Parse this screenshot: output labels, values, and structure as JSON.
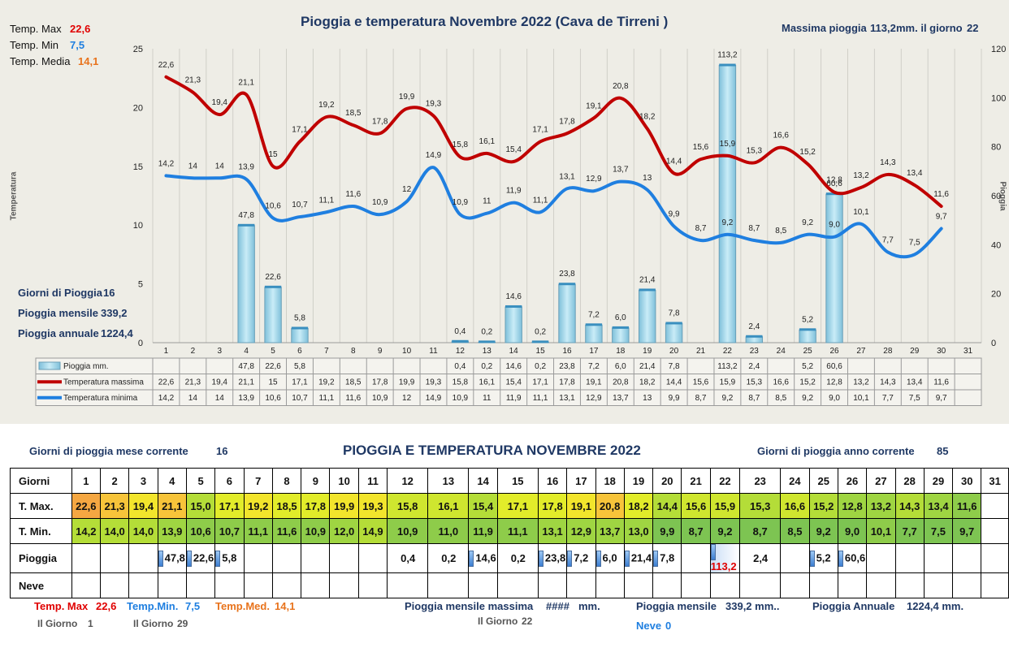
{
  "chart_title": "Pioggia e temperatura Novembre 2022 (Cava de Tirreni )",
  "summary_left": {
    "temp_max_label": "Temp. Max",
    "temp_max_value": "22,6",
    "temp_min_label": "Temp. Min",
    "temp_min_value": "7,5",
    "temp_med_label": "Temp. Media",
    "temp_med_value": "14,1"
  },
  "max_rain_text": "Massima pioggia",
  "max_rain_value": "113,2",
  "max_rain_unit": "mm. il giorno",
  "max_rain_day": "22",
  "rain_stats": {
    "giorni_label": "Giorni di Pioggia",
    "giorni_value": "16",
    "mensile_label": "Pioggia mensile",
    "mensile_value": "339,2",
    "annuale_label": "Pioggia annuale",
    "annuale_value": "1224,4"
  },
  "ylabel_left": "Temperatura",
  "ylabel_right": "Pioggia",
  "chart_data": {
    "type": "bar+line",
    "categories": [
      "1",
      "2",
      "3",
      "4",
      "5",
      "6",
      "7",
      "8",
      "9",
      "10",
      "11",
      "12",
      "13",
      "14",
      "15",
      "16",
      "17",
      "18",
      "19",
      "20",
      "21",
      "22",
      "23",
      "24",
      "25",
      "26",
      "27",
      "28",
      "29",
      "30",
      "31"
    ],
    "y_left_range": [
      0,
      25
    ],
    "y_left_ticks": [
      "0",
      "5",
      "10",
      "15",
      "20",
      "25"
    ],
    "y_right_range": [
      0,
      120
    ],
    "y_right_ticks": [
      "0",
      "20",
      "40",
      "60",
      "80",
      "100",
      "120"
    ],
    "grid": "vertical",
    "legend_placement": "table-below",
    "series": [
      {
        "name": "Pioggia mm.",
        "type": "bar",
        "axis": "right",
        "color": "#9fd3e6",
        "values": [
          null,
          null,
          null,
          47.8,
          22.6,
          5.8,
          null,
          null,
          null,
          null,
          null,
          0.4,
          0.2,
          14.6,
          0.2,
          23.8,
          7.2,
          6.0,
          21.4,
          7.8,
          null,
          113.2,
          2.4,
          null,
          5.2,
          60.6,
          null,
          null,
          null,
          null,
          null
        ],
        "labels": [
          "",
          "",
          "",
          "47,8",
          "22,6",
          "5,8",
          "",
          "",
          "",
          "",
          "",
          "0,4",
          "0,2",
          "14,6",
          "0,2",
          "23,8",
          "7,2",
          "6,0",
          "21,4",
          "7,8",
          "",
          "113,2",
          "2,4",
          "",
          "5,2",
          "60,6",
          "",
          "",
          "",
          "",
          ""
        ]
      },
      {
        "name": "Temperatura massima",
        "type": "line",
        "axis": "left",
        "color": "#c00000",
        "values": [
          22.6,
          21.3,
          19.4,
          21.1,
          15,
          17.1,
          19.2,
          18.5,
          17.8,
          19.9,
          19.3,
          15.8,
          16.1,
          15.4,
          17.1,
          17.8,
          19.1,
          20.8,
          18.2,
          14.4,
          15.6,
          15.9,
          15.3,
          16.6,
          15.2,
          12.8,
          13.2,
          14.3,
          13.4,
          11.6,
          null
        ],
        "labels": [
          "22,6",
          "21,3",
          "19,4",
          "21,1",
          "15",
          "17,1",
          "19,2",
          "18,5",
          "17,8",
          "19,9",
          "19,3",
          "15,8",
          "16,1",
          "15,4",
          "17,1",
          "17,8",
          "19,1",
          "20,8",
          "18,2",
          "14,4",
          "15,6",
          "15,9",
          "15,3",
          "16,6",
          "15,2",
          "12,8",
          "13,2",
          "14,3",
          "13,4",
          "11,6",
          ""
        ]
      },
      {
        "name": "Temperatura minima",
        "type": "line",
        "axis": "left",
        "color": "#1f7fe0",
        "values": [
          14.2,
          14,
          14,
          13.9,
          10.6,
          10.7,
          11.1,
          11.6,
          10.9,
          12,
          14.9,
          10.9,
          11,
          11.9,
          11.1,
          13.1,
          12.9,
          13.7,
          13,
          9.9,
          8.7,
          9.2,
          8.7,
          8.5,
          9.2,
          9.0,
          10.1,
          7.7,
          7.5,
          9.7,
          null
        ],
        "labels": [
          "14,2",
          "14",
          "14",
          "13,9",
          "10,6",
          "10,7",
          "11,1",
          "11,6",
          "10,9",
          "12",
          "14,9",
          "10,9",
          "11",
          "11,9",
          "11,1",
          "13,1",
          "12,9",
          "13,7",
          "13",
          "9,9",
          "8,7",
          "9,2",
          "8,7",
          "8,5",
          "9,2",
          "9,0",
          "10,1",
          "7,7",
          "7,5",
          "9,7",
          ""
        ]
      }
    ]
  },
  "bottom": {
    "title": "PIOGGIA E TEMPERATURA NOVEMBRE 2022",
    "giorni_mese_label": "Giorni di pioggia mese corrente",
    "giorni_mese_value": "16",
    "giorni_anno_label": "Giorni di pioggia anno corrente",
    "giorni_anno_value": "85",
    "row_headers": [
      "Giorni",
      "T. Max.",
      "T. Min.",
      "Pioggia",
      "Neve"
    ],
    "days": [
      "1",
      "2",
      "3",
      "4",
      "5",
      "6",
      "7",
      "8",
      "9",
      "10",
      "11",
      "12",
      "13",
      "14",
      "15",
      "16",
      "17",
      "18",
      "19",
      "20",
      "21",
      "22",
      "23",
      "24",
      "25",
      "26",
      "27",
      "28",
      "29",
      "30",
      "31"
    ],
    "tmax": [
      "22,6",
      "21,3",
      "19,4",
      "21,1",
      "15,0",
      "17,1",
      "19,2",
      "18,5",
      "17,8",
      "19,9",
      "19,3",
      "15,8",
      "16,1",
      "15,4",
      "17,1",
      "17,8",
      "19,1",
      "20,8",
      "18,2",
      "14,4",
      "15,6",
      "15,9",
      "15,3",
      "16,6",
      "15,2",
      "12,8",
      "13,2",
      "14,3",
      "13,4",
      "11,6",
      ""
    ],
    "tmin": [
      "14,2",
      "14,0",
      "14,0",
      "13,9",
      "10,6",
      "10,7",
      "11,1",
      "11,6",
      "10,9",
      "12,0",
      "14,9",
      "10,9",
      "11,0",
      "11,9",
      "11,1",
      "13,1",
      "12,9",
      "13,7",
      "13,0",
      "9,9",
      "8,7",
      "9,2",
      "8,7",
      "8,5",
      "9,2",
      "9,0",
      "10,1",
      "7,7",
      "7,5",
      "9,7",
      ""
    ],
    "rain": [
      "",
      "",
      "",
      "47,8",
      "22,6",
      "5,8",
      "",
      "",
      "",
      "",
      "",
      "0,4",
      "0,2",
      "14,6",
      "0,2",
      "23,8",
      "7,2",
      "6,0",
      "21,4",
      "7,8",
      "",
      "113,2",
      "2,4",
      "",
      "5,2",
      "60,6",
      "",
      "",
      "",
      "",
      ""
    ],
    "footer": {
      "tmax_label": "Temp. Max",
      "tmax_value": "22,6",
      "tmax_day_label": "Il Giorno",
      "tmax_day": "1",
      "tmin_label": "Temp.Min.",
      "tmin_value": "7,5",
      "tmin_day_label": "Il Giorno",
      "tmin_day": "29",
      "tmed_label": "Temp.Med.",
      "tmed_value": "14,1",
      "max_rain_label": "Pioggia mensile massima",
      "max_rain_value": "####",
      "max_rain_unit": "mm.",
      "max_rain_day_label": "Il Giorno",
      "max_rain_day": "22",
      "mensile_label": "Pioggia mensile",
      "mensile_value": "339,2 mm..",
      "annuale_label": "Pioggia Annuale",
      "annuale_value": "1224,4 mm.",
      "neve_label": "Neve",
      "neve_value": "0"
    }
  }
}
